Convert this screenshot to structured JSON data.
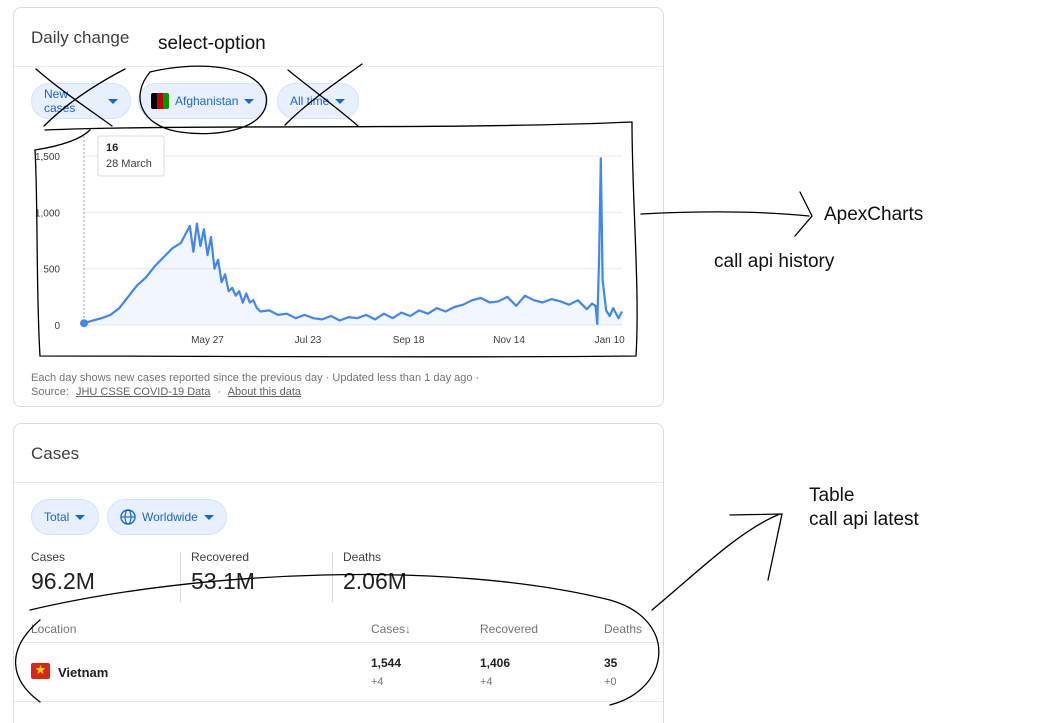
{
  "daily": {
    "title": "Daily change",
    "filters": {
      "metric": "New cases",
      "country": "Afghanistan",
      "range": "All time"
    },
    "tooltip": {
      "value": "16",
      "date": "28 March"
    },
    "footnote": {
      "line1": "Each day shows new cases reported since the previous day · Updated less than 1 day ago ·",
      "source_label": "Source:",
      "source_link": "JHU CSSE COVID-19 Data",
      "sep": "·",
      "about_link": "About this data"
    }
  },
  "chart_data": {
    "type": "line",
    "title": "",
    "xlabel": "",
    "ylabel": "",
    "ylim": [
      0,
      1500
    ],
    "yticks": [
      0,
      500,
      1000,
      1500
    ],
    "ytick_labels": [
      "0",
      "500",
      "1,000",
      "1,500"
    ],
    "xtick_labels": [
      "May 27",
      "Jul 23",
      "Sep 18",
      "Nov 14",
      "Jan 10"
    ],
    "xtick_day_index": [
      70,
      127,
      184,
      241,
      298
    ],
    "grid": true,
    "color": "#4285f4",
    "series": [
      {
        "x_day_index": [
          0,
          5,
          10,
          15,
          20,
          25,
          30,
          35,
          40,
          45,
          50,
          55,
          60,
          62,
          64,
          66,
          68,
          70,
          72,
          74,
          76,
          78,
          80,
          82,
          84,
          86,
          88,
          90,
          92,
          94,
          96,
          98,
          100,
          105,
          110,
          115,
          120,
          125,
          130,
          135,
          140,
          145,
          150,
          155,
          160,
          165,
          170,
          175,
          180,
          185,
          190,
          195,
          200,
          205,
          210,
          215,
          220,
          225,
          230,
          235,
          240,
          245,
          250,
          255,
          260,
          265,
          270,
          275,
          280,
          285,
          288,
          290,
          291,
          292,
          293,
          294,
          296,
          298,
          300,
          303,
          305
        ],
        "values": [
          16,
          40,
          60,
          90,
          150,
          250,
          350,
          420,
          520,
          600,
          680,
          730,
          880,
          650,
          900,
          700,
          850,
          620,
          780,
          500,
          580,
          380,
          450,
          300,
          330,
          260,
          300,
          200,
          280,
          200,
          220,
          150,
          120,
          130,
          90,
          100,
          60,
          90,
          60,
          50,
          80,
          40,
          70,
          60,
          90,
          50,
          100,
          60,
          110,
          80,
          130,
          100,
          150,
          120,
          160,
          180,
          220,
          240,
          200,
          210,
          250,
          170,
          260,
          220,
          200,
          230,
          210,
          180,
          220,
          140,
          190,
          170,
          10,
          600,
          1480,
          400,
          130,
          80,
          150,
          60,
          120
        ]
      }
    ]
  },
  "cases": {
    "title": "Cases",
    "filters": {
      "type": "Total",
      "region": "Worldwide"
    },
    "stats": [
      {
        "label": "Cases",
        "value": "96.2M"
      },
      {
        "label": "Recovered",
        "value": "53.1M"
      },
      {
        "label": "Deaths",
        "value": "2.06M"
      }
    ],
    "table": {
      "columns": {
        "location": "Location",
        "cases": "Cases",
        "sort": "↓",
        "recovered": "Recovered",
        "deaths": "Deaths"
      },
      "rows": [
        {
          "location": "Vietnam",
          "cases": "1,544",
          "cases_delta": "+4",
          "recovered": "1,406",
          "recovered_delta": "+4",
          "deaths": "35",
          "deaths_delta": "+0"
        }
      ]
    }
  },
  "annotations": {
    "select_option": "select-option",
    "apexcharts": "ApexCharts",
    "call_api_history": "call api history",
    "table": "Table",
    "call_api_latest": "call api latest"
  }
}
